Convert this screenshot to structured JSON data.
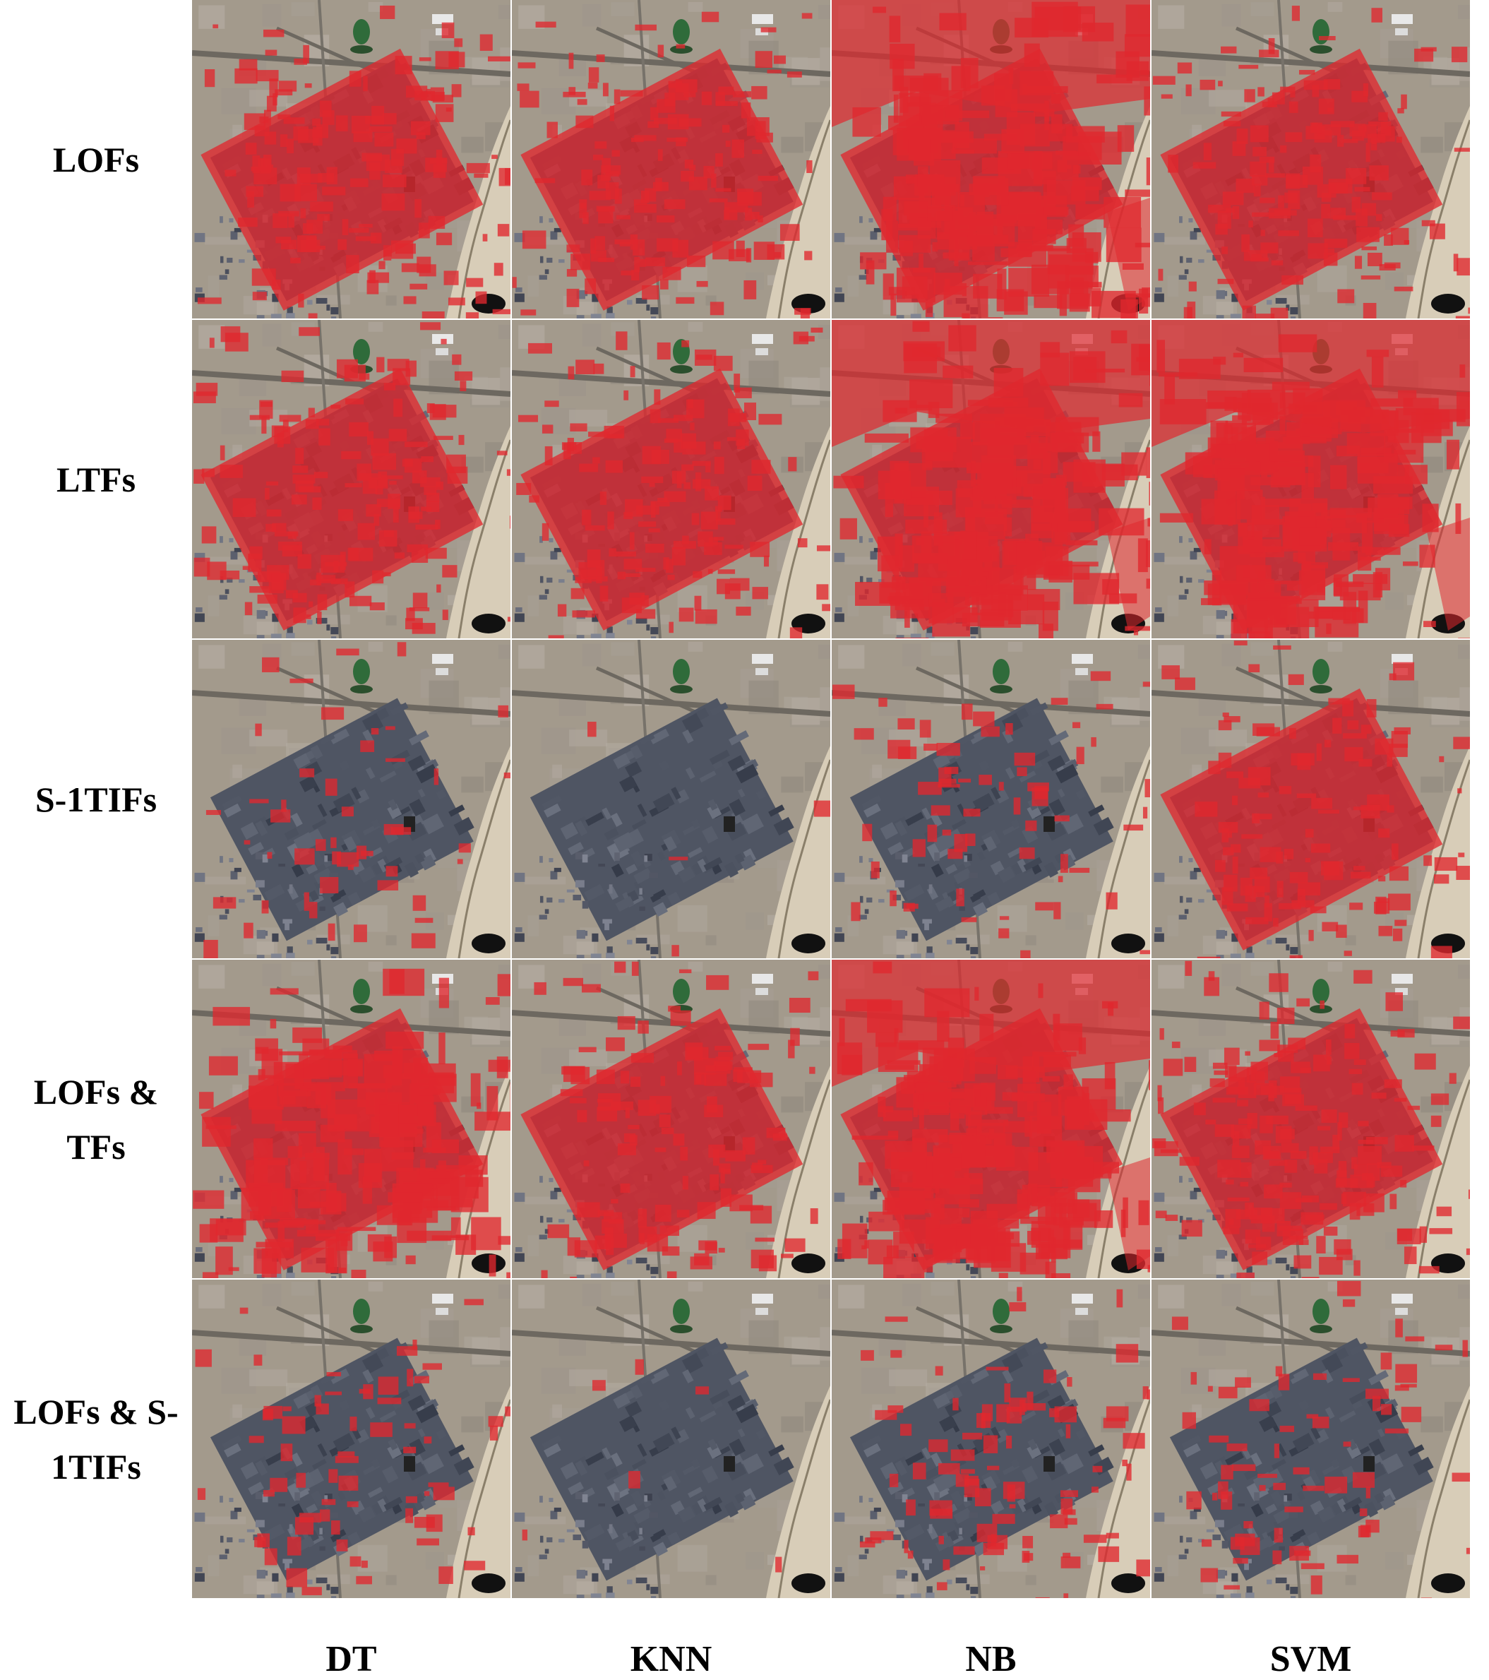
{
  "rows": [
    {
      "label": "LOFs"
    },
    {
      "label": "LTFs"
    },
    {
      "label": "S-1TIFs"
    },
    {
      "label": "LOFs &\nTFs"
    },
    {
      "label": "LOFs & S-\n1TIFs"
    }
  ],
  "columns": [
    {
      "label": "DT"
    },
    {
      "label": "KNN"
    },
    {
      "label": "NB"
    },
    {
      "label": "SVM"
    }
  ],
  "overlay_color": "#e0282e",
  "coverage": [
    [
      0.7,
      0.66,
      0.88,
      0.68
    ],
    [
      0.72,
      0.66,
      0.9,
      0.9
    ],
    [
      0.22,
      0.02,
      0.3,
      0.52
    ],
    [
      0.82,
      0.55,
      0.92,
      0.8
    ],
    [
      0.3,
      0.03,
      0.4,
      0.32
    ]
  ]
}
